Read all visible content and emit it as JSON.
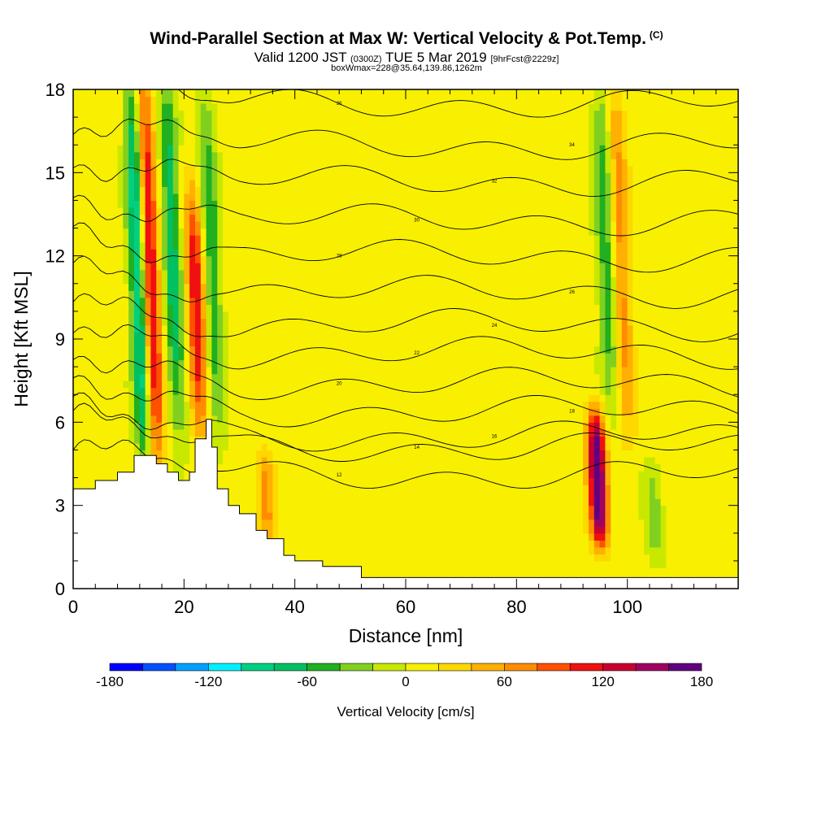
{
  "header": {
    "title": "Wind-Parallel Section at Max W: Vertical Velocity & Pot.Temp.",
    "title_mark": "(C)",
    "valid_prefix": "Valid 1200 JST",
    "valid_utc": "(0300Z)",
    "valid_date": "TUE 5 Mar 2019",
    "forecast_tag": "[9hrFcst@2229z]",
    "box_info": "boxWmax=228@35.64,139.86,1262m"
  },
  "chart_data": {
    "type": "heatmap",
    "xlabel": "Distance [nm]",
    "ylabel": "Height [Kft MSL]",
    "xlim": [
      0,
      120
    ],
    "ylim": [
      0,
      18
    ],
    "x_ticks": [
      0,
      20,
      40,
      60,
      80,
      100
    ],
    "y_ticks": [
      0,
      3,
      6,
      9,
      12,
      15,
      18
    ],
    "x_minor_step": 4,
    "y_minor_step": 1,
    "colorbar": {
      "label": "Vertical Velocity [cm/s]",
      "range": [
        -180,
        180
      ],
      "step": 20,
      "tick_labels": [
        "-180",
        "-120",
        "-60",
        "0",
        "60",
        "120",
        "180"
      ],
      "colors": [
        "#0000ff",
        "#0050ff",
        "#00a0ff",
        "#00f0ff",
        "#00d080",
        "#00c060",
        "#20b020",
        "#80d020",
        "#c8e800",
        "#f8f000",
        "#ffd800",
        "#ffb000",
        "#ff8c00",
        "#ff5000",
        "#f01010",
        "#c80030",
        "#a00060",
        "#600080"
      ]
    },
    "terrain_kft": [
      [
        0,
        3.6
      ],
      [
        4,
        3.9
      ],
      [
        8,
        4.2
      ],
      [
        11,
        4.8
      ],
      [
        14,
        4.8
      ],
      [
        15,
        4.5
      ],
      [
        17,
        4.2
      ],
      [
        19,
        3.9
      ],
      [
        21,
        4.2
      ],
      [
        22,
        5.4
      ],
      [
        24,
        6.1
      ],
      [
        25,
        5.1
      ],
      [
        26,
        3.6
      ],
      [
        28,
        3.0
      ],
      [
        30,
        2.7
      ],
      [
        33,
        2.1
      ],
      [
        35,
        1.8
      ],
      [
        38,
        1.2
      ],
      [
        40,
        1.0
      ],
      [
        45,
        0.8
      ],
      [
        52,
        0.4
      ],
      [
        60,
        0.4
      ],
      [
        120,
        0.4
      ]
    ],
    "updrafts": [
      {
        "x": 15,
        "y_bottom": 4.8,
        "y_top": 18,
        "peak_cms": 130
      },
      {
        "x": 23,
        "y_bottom": 6.0,
        "y_top": 14,
        "peak_cms": 110
      },
      {
        "x": 35,
        "y_bottom": 2.0,
        "y_top": 4.5,
        "peak_cms": 60
      },
      {
        "x": 95,
        "y_bottom": 2.0,
        "y_top": 6.0,
        "peak_cms": 180
      },
      {
        "x": 100,
        "y_bottom": 6.0,
        "y_top": 18,
        "peak_cms": 60
      }
    ],
    "downdrafts": [
      {
        "x": 13,
        "y_bottom": 4.8,
        "y_top": 18,
        "min_cms": -120
      },
      {
        "x": 19,
        "y_bottom": 6.0,
        "y_top": 18,
        "min_cms": -80
      },
      {
        "x": 26,
        "y_bottom": 6.0,
        "y_top": 18,
        "min_cms": -60
      },
      {
        "x": 97,
        "y_bottom": 7.0,
        "y_top": 18,
        "min_cms": -60
      },
      {
        "x": 105,
        "y_bottom": 1.5,
        "y_top": 4.0,
        "min_cms": -40
      }
    ],
    "isentropes": {
      "label_values": [
        "12",
        "14",
        "16",
        "18",
        "20",
        "22",
        "24",
        "26",
        "28",
        "30",
        "32",
        "34",
        "36"
      ],
      "heights_kft_at_x60": [
        4.1,
        5.1,
        5.5,
        6.4,
        7.4,
        8.5,
        9.5,
        10.7,
        12.0,
        13.3,
        14.7,
        16.0,
        17.5
      ]
    }
  }
}
